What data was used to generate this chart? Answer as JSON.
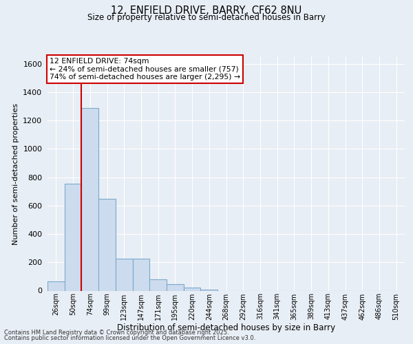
{
  "title": "12, ENFIELD DRIVE, BARRY, CF62 8NU",
  "subtitle": "Size of property relative to semi-detached houses in Barry",
  "xlabel": "Distribution of semi-detached houses by size in Barry",
  "ylabel": "Number of semi-detached properties",
  "categories": [
    "26sqm",
    "50sqm",
    "74sqm",
    "99sqm",
    "123sqm",
    "147sqm",
    "171sqm",
    "195sqm",
    "220sqm",
    "244sqm",
    "268sqm",
    "292sqm",
    "316sqm",
    "341sqm",
    "365sqm",
    "389sqm",
    "413sqm",
    "437sqm",
    "462sqm",
    "486sqm",
    "510sqm"
  ],
  "values": [
    65,
    755,
    1290,
    650,
    225,
    225,
    80,
    45,
    20,
    5,
    0,
    0,
    0,
    0,
    0,
    0,
    0,
    0,
    0,
    0,
    0
  ],
  "bar_color": "#ccdcee",
  "bar_edge_color": "#7aa8cc",
  "vline_color": "#cc0000",
  "annotation_line1": "12 ENFIELD DRIVE: 74sqm",
  "annotation_line2": "← 24% of semi-detached houses are smaller (757)",
  "annotation_line3": "74% of semi-detached houses are larger (2,295) →",
  "annotation_box_color": "#ffffff",
  "annotation_box_edge": "#cc0000",
  "ylim": [
    0,
    1650
  ],
  "yticks": [
    0,
    200,
    400,
    600,
    800,
    1000,
    1200,
    1400,
    1600
  ],
  "bg_color": "#e8eef5",
  "plot_bg_color": "#e8eef5",
  "grid_color": "#ffffff",
  "footer1": "Contains HM Land Registry data © Crown copyright and database right 2025.",
  "footer2": "Contains public sector information licensed under the Open Government Licence v3.0."
}
